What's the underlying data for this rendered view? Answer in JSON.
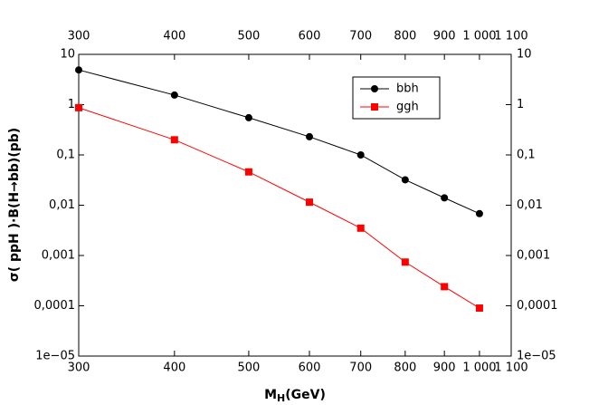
{
  "chart_data": {
    "type": "line",
    "x_label": {
      "main": "M",
      "sub": "H",
      "unit": "(GeV)"
    },
    "y_label": "σ( ppH )·B(H→bb)(pb)",
    "x": [
      300,
      400,
      500,
      600,
      700,
      800,
      900,
      1000
    ],
    "series": [
      {
        "name": "bbh",
        "color": "#000000",
        "marker": "circle",
        "values": [
          4.9,
          1.55,
          0.55,
          0.23,
          0.1,
          0.032,
          0.014,
          0.0068
        ]
      },
      {
        "name": "ggh",
        "color": "#ff0000",
        "marker": "square",
        "values": [
          0.87,
          0.2,
          0.046,
          0.0115,
          0.0035,
          0.00074,
          0.00024,
          9e-05
        ]
      }
    ],
    "xlim": [
      300,
      1100
    ],
    "xticks": [
      300,
      400,
      500,
      600,
      700,
      800,
      900,
      {
        "value": 1000,
        "label": "1 000"
      },
      {
        "value": 1100,
        "label": "1 100"
      }
    ],
    "ylim": [
      1e-05,
      10
    ],
    "yticks": [
      {
        "value": 1e-05,
        "label": "1e−05"
      },
      {
        "value": 0.0001,
        "label": "0,0001"
      },
      {
        "value": 0.001,
        "label": "0,001"
      },
      {
        "value": 0.01,
        "label": "0,01"
      },
      {
        "value": 0.1,
        "label": "0,1"
      },
      1,
      10
    ],
    "xscale": "log",
    "yscale": "log",
    "mirror_axes": true,
    "legend": "upper right"
  }
}
